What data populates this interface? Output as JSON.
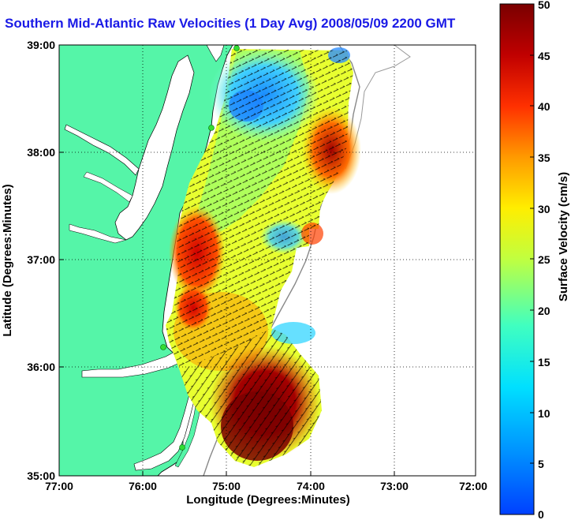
{
  "title": "Southern Mid-Atlantic Raw Velocities (1 Day Avg) 2008/05/09 2200 GMT",
  "map": {
    "xlabel": "Longitude (Degrees:Minutes)",
    "ylabel": "Latitude (Degrees:Minutes)",
    "x_ticks": [
      "77:00",
      "76:00",
      "75:00",
      "74:00",
      "73:00",
      "72:00"
    ],
    "y_ticks": [
      "39:00",
      "38:00",
      "37:00",
      "36:00",
      "35:00"
    ],
    "lon_range": [
      -77,
      -72
    ],
    "lat_range": [
      35,
      39
    ],
    "grid": true,
    "land_color": "#55f5a8",
    "coastline_color": "#000000",
    "bathymetry_color": "#888888",
    "station_color": "#33dd33"
  },
  "colorbar": {
    "label": "Surface Velocity (cm/s)",
    "range": [
      0,
      50
    ],
    "ticks": [
      "0",
      "5",
      "10",
      "15",
      "20",
      "25",
      "30",
      "35",
      "40",
      "45",
      "50"
    ],
    "colormap": "jet"
  }
}
